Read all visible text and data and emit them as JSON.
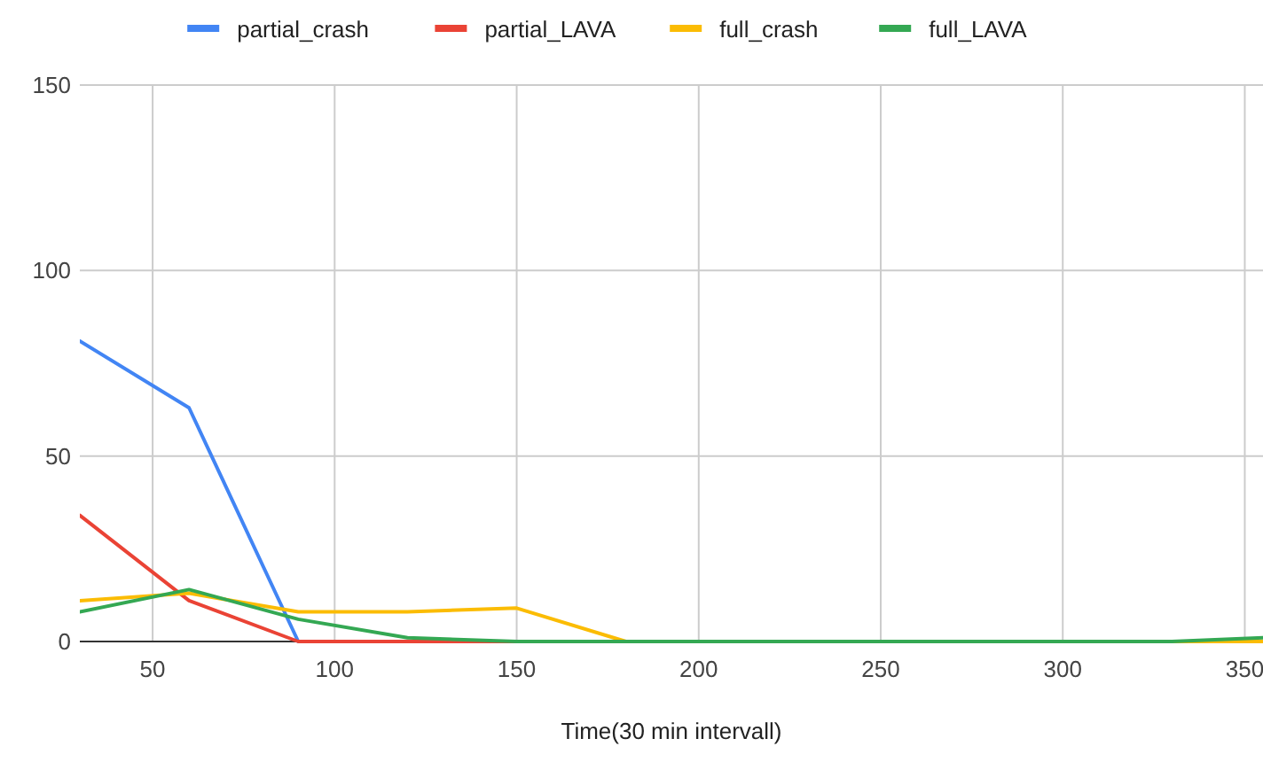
{
  "chart_data": {
    "type": "line",
    "xlabel": "Time(30 min intervall)",
    "x": [
      30,
      60,
      90,
      120,
      150,
      180,
      210,
      240,
      270,
      300,
      330,
      355
    ],
    "xlim": [
      30,
      355
    ],
    "xticks": [
      50,
      100,
      150,
      200,
      250,
      300,
      350
    ],
    "ylim": [
      0,
      150
    ],
    "yticks": [
      0,
      50,
      100,
      150
    ],
    "grid": true,
    "legend": "top",
    "line_style": "solid",
    "marker": "none",
    "series": [
      {
        "name": "partial_crash",
        "color": "#4285f4",
        "values": [
          81,
          63,
          0,
          null,
          null,
          null,
          null,
          null,
          null,
          null,
          null,
          null
        ]
      },
      {
        "name": "partial_LAVA",
        "color": "#ea4335",
        "values": [
          34,
          11,
          0,
          0,
          0,
          null,
          null,
          null,
          null,
          null,
          null,
          null
        ]
      },
      {
        "name": "full_crash",
        "color": "#fbbc04",
        "values": [
          11,
          13,
          8,
          8,
          9,
          0,
          0,
          0,
          0,
          0,
          0,
          0
        ]
      },
      {
        "name": "full_LAVA",
        "color": "#34a853",
        "values": [
          8,
          14,
          6,
          1,
          0,
          0,
          0,
          0,
          0,
          0,
          0,
          1
        ]
      }
    ]
  }
}
